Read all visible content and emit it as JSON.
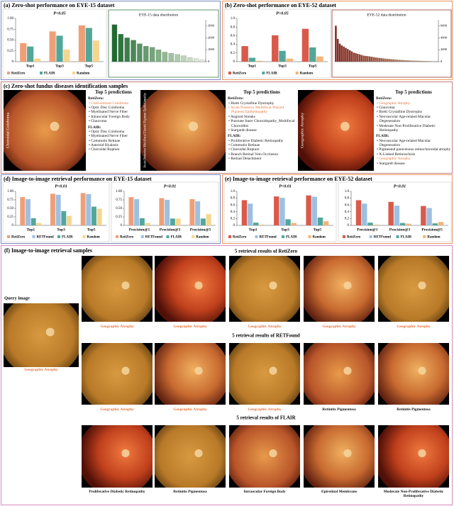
{
  "panel_titles": [
    "(a) Zero-shot performance on EYE-15 dataset",
    "(b) Zero-shot performance on EYE-52 dataset",
    "(c) Zero-shot fundus diseases identification samples",
    "(d) Image-to-image retrieval performance on EYE-15 dataset",
    "(e) Image-to-image retrieval performance on EYE-52 dataset",
    "(f) Image-to-image retrieval  samples"
  ],
  "chart_data": [
    {
      "type": "bar",
      "annotation": "P<0.05",
      "categories": [
        "Top1",
        "Top3",
        "Top5"
      ],
      "series": [
        {
          "name": "RetiZero",
          "color": "#ef9f76",
          "values": [
            0.43,
            0.7,
            0.84
          ]
        },
        {
          "name": "FLAIR",
          "color": "#52a79a",
          "values": [
            0.35,
            0.6,
            0.78
          ]
        },
        {
          "name": "Random",
          "color": "#f6d58e",
          "values": [
            0.07,
            0.28,
            0.49
          ]
        }
      ],
      "ylim": [
        0,
        1
      ],
      "yticks": [
        0,
        0.25,
        {
          "value": 0.5,
          "label": "0.50"
        },
        0.75,
        {
          "value": 1,
          "label": "1.00"
        }
      ]
    },
    {
      "type": "distribution",
      "title": "EYE-15 data distribution",
      "color_range": [
        "#1e6b30",
        "#e6f3dc"
      ],
      "values": [
        3100,
        2300,
        2000,
        1800,
        1500,
        1300,
        1200,
        1000,
        800,
        700,
        600,
        500,
        350,
        250,
        150
      ],
      "ylim": [
        0,
        3500
      ],
      "yticks": [
        0,
        1000,
        2000,
        3000
      ]
    },
    {
      "type": "bar",
      "annotation": "P<0.05",
      "categories": [
        "Top1",
        "Top3",
        "Top5"
      ],
      "series": [
        {
          "name": "RetiZero",
          "color": "#d95a4a",
          "values": [
            0.36,
            0.61,
            0.76
          ]
        },
        {
          "name": "FLAIR",
          "color": "#52a79a",
          "values": [
            0.09,
            0.25,
            0.33
          ]
        },
        {
          "name": "Random",
          "color": "#f2b57a",
          "values": [
            0.02,
            0.07,
            0.12
          ]
        }
      ],
      "ylim": [
        0,
        1
      ],
      "yticks": [
        0,
        0.2,
        0.4,
        0.6,
        0.8,
        {
          "value": 1,
          "label": "1.0"
        }
      ]
    },
    {
      "type": "distribution",
      "title": "EYE-52 data distribution",
      "color_range": [
        "#8b1a10",
        "#f0a868"
      ],
      "values": [
        6000,
        3800,
        3000,
        2700,
        2500,
        2300,
        2100,
        1900,
        1700,
        1500,
        1400,
        1300,
        1200,
        1100,
        1000,
        950,
        900,
        850,
        800,
        750,
        700,
        650,
        600,
        560,
        520,
        480,
        450,
        420,
        390,
        360,
        330,
        300,
        280,
        260,
        240,
        220,
        200,
        180,
        160,
        150,
        140,
        130,
        120,
        110,
        100,
        90,
        80,
        70,
        60,
        50,
        40,
        30
      ],
      "ylim": [
        0,
        7000
      ],
      "yticks": [
        0,
        2000,
        4000,
        6000
      ]
    },
    {
      "type": "bar",
      "annotation": "P<0.01",
      "categories": [
        "Top1",
        "Top3",
        "Top5"
      ],
      "series": [
        {
          "name": "RetiZero",
          "color": "#ef9f76",
          "values": [
            0.83,
            0.93,
            0.95
          ]
        },
        {
          "name": "RETFound",
          "color": "#9dbfe2",
          "values": [
            0.77,
            0.9,
            0.92
          ]
        },
        {
          "name": "FLAIR",
          "color": "#52a79a",
          "values": [
            0.21,
            0.42,
            0.55
          ]
        },
        {
          "name": "Random",
          "color": "#f6d58e",
          "values": [
            0.07,
            0.28,
            0.49
          ]
        }
      ],
      "ylim": [
        0,
        1
      ],
      "yticks": [
        0,
        0.25,
        {
          "value": 0.5,
          "label": "0.50"
        },
        0.75,
        {
          "value": 1,
          "label": "1.00"
        }
      ]
    },
    {
      "type": "bar",
      "annotation": "P<0.01",
      "categories": [
        "Precision@1",
        "Precision@3",
        "Precision@5"
      ],
      "series": [
        {
          "name": "RetiZero",
          "color": "#ef9f76",
          "values": [
            0.83,
            0.8,
            0.77
          ]
        },
        {
          "name": "RETFound",
          "color": "#9dbfe2",
          "values": [
            0.77,
            0.75,
            0.71
          ]
        },
        {
          "name": "FLAIR",
          "color": "#52a79a",
          "values": [
            0.21,
            0.2,
            0.2
          ]
        },
        {
          "name": "Random",
          "color": "#f6d58e",
          "values": [
            0.07,
            0.2,
            0.33
          ]
        }
      ],
      "ylim": [
        0,
        1
      ],
      "yticks": [
        0,
        0.25,
        {
          "value": 0.5,
          "label": "0.50"
        },
        0.75,
        {
          "value": 1,
          "label": "1.00"
        }
      ]
    },
    {
      "type": "bar",
      "annotation": "P<0.01",
      "categories": [
        "Top1",
        "Top3",
        "Top5"
      ],
      "series": [
        {
          "name": "RetiZero",
          "color": "#d95a4a",
          "values": [
            0.74,
            0.85,
            0.88
          ]
        },
        {
          "name": "RETFound",
          "color": "#9dbfe2",
          "values": [
            0.64,
            0.81,
            0.84
          ]
        },
        {
          "name": "FLAIR",
          "color": "#52a79a",
          "values": [
            0.08,
            0.18,
            0.23
          ]
        },
        {
          "name": "Random",
          "color": "#f2b57a",
          "values": [
            0.02,
            0.07,
            0.12
          ]
        }
      ],
      "ylim": [
        0,
        1
      ],
      "yticks": [
        0,
        0.2,
        0.4,
        0.6,
        0.8,
        {
          "value": 1,
          "label": "1.0"
        }
      ]
    },
    {
      "type": "bar",
      "annotation": "P<0.01",
      "categories": [
        "Precision@1",
        "Precision@3",
        "Precision@5"
      ],
      "series": [
        {
          "name": "RetiZero",
          "color": "#d95a4a",
          "values": [
            0.74,
            0.69,
            0.57
          ]
        },
        {
          "name": "RETFound",
          "color": "#9dbfe2",
          "values": [
            0.64,
            0.58,
            0.51
          ]
        },
        {
          "name": "FLAIR",
          "color": "#52a79a",
          "values": [
            0.08,
            0.07,
            0.06
          ]
        },
        {
          "name": "Random",
          "color": "#f2b57a",
          "values": [
            0.02,
            0.05,
            0.1
          ]
        }
      ],
      "ylim": [
        0,
        1
      ],
      "yticks": [
        0,
        0.2,
        0.4,
        0.6,
        0.8,
        {
          "value": 1,
          "label": "1.0"
        }
      ]
    }
  ],
  "samples": [
    {
      "image_label": "Choroidal Coloboma",
      "heading": "Top 5 predictions",
      "groups": [
        {
          "name": "RetiZero:",
          "items": [
            {
              "text": "Chorioretinal Coloboma",
              "color": "#e8743b"
            },
            "Optic Disc Coloboma",
            "Myelinated Nerve Fiber",
            "Intraocular Foreign Body",
            "Glaucoma"
          ]
        },
        {
          "name": "FLAIR:",
          "items": [
            "Optic Disc Coloboma",
            "Myelinated Nerve Fiber",
            "Commotio Retinae",
            "Asteroid Hyalosis",
            "Choroidal Rupture"
          ]
        }
      ]
    },
    {
      "image_label": "Acute Posterior Multifocal Placoid Pigment Epitheliopathy",
      "heading": "Top 5 predictions",
      "groups": [
        {
          "name": "RetiZero:",
          "items": [
            "Bietti Crystalline Dystrophy",
            {
              "text": "Acute Posterior Multifocal Placoid Pigment Epitheliopathy",
              "color": "#e8743b"
            },
            "Angioid Streaks",
            "Punctate Inner Choroidopathy_Multifocal Choroiditis",
            "Stargardt disease"
          ]
        },
        {
          "name": "FLAIR:",
          "items": [
            "Proliferative Diabetic Retinopathy",
            "Commotio Retinae",
            "Choroidal Rupture",
            "Branch Retinal Vein Occlusion",
            "Retinal Detachment"
          ]
        }
      ]
    },
    {
      "image_label": "Geographic Atrophy",
      "heading": "Top 5 predictions",
      "groups": [
        {
          "name": "RetiZero:",
          "items": [
            {
              "text": "Geographic Atrophy",
              "color": "#e8743b"
            },
            "Glaucoma",
            "Bietti Crystalline Dystrophy",
            "Neovascular Age-related Macular Degeneration",
            "Moderate Non-Proliferative Diabetic Retinopathy"
          ]
        },
        {
          "name": "FLAIR:",
          "items": [
            "Neovascular Age-related Macular Degeneration",
            "Pigmented paravenous retinochoroidal atrophy",
            "X-Linked Retinoschisis",
            {
              "text": "Geographic Atrophy",
              "color": "#e8743b"
            },
            "Stargardt disease"
          ]
        }
      ]
    }
  ],
  "retrieval": {
    "query_title": "Query image",
    "query_label": {
      "text": "Geographic Atrophy",
      "color": "#e8743b"
    },
    "rows": [
      {
        "title": "5 retrieval results of RetiZero",
        "results": [
          {
            "text": "Geographic Atrophy",
            "color": "#e8743b"
          },
          {
            "text": "Geographic Atrophy",
            "color": "#e8743b"
          },
          {
            "text": "Geographic Atrophy",
            "color": "#e8743b"
          },
          {
            "text": "Geographic Atrophy",
            "color": "#e8743b"
          },
          {
            "text": "Geographic Atrophy",
            "color": "#e8743b"
          }
        ]
      },
      {
        "title": "5 retrieval results of RETFound",
        "results": [
          {
            "text": "Geographic Atrophy",
            "color": "#e8743b"
          },
          {
            "text": "Geographic Atrophy",
            "color": "#e8743b"
          },
          {
            "text": "Geographic Atrophy",
            "color": "#e8743b"
          },
          "Retinitis Pigmentosa",
          "Retinitis Pigmentosa"
        ]
      },
      {
        "title": "5 retrieval results of FLAIR",
        "results": [
          "Proliferative Diabetic Retinopathy",
          "Retinitis Pigmentosa",
          "Intraocular Foreign Body",
          "Epiretinal Membrane",
          "Moderate Non-Proliferative Diabetic Retinopathy"
        ]
      }
    ]
  }
}
